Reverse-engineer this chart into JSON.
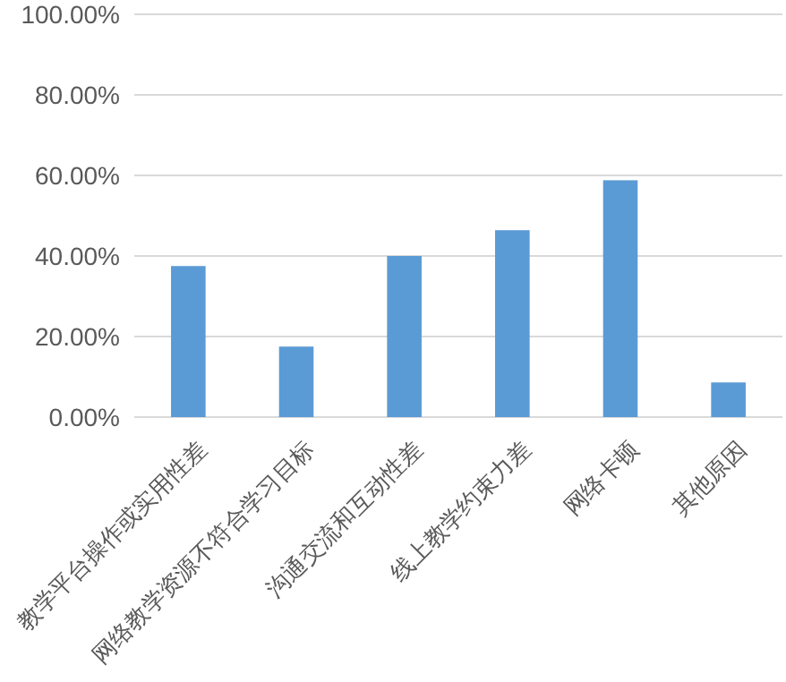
{
  "chart_data": {
    "type": "bar",
    "categories": [
      "教学平台操作或实用性差",
      "网络教学资源不符合学习目标",
      "沟通交流和互动性差",
      "线上教学约束力差",
      "网络卡顿",
      "其他原因"
    ],
    "values": [
      37.5,
      17.5,
      40,
      46.4,
      58.8,
      8.6
    ],
    "color": "#5b9bd5",
    "ylim": [
      0,
      100
    ],
    "yticks": [
      {
        "value": 0,
        "label": "0.00%"
      },
      {
        "value": 20,
        "label": "20.00%"
      },
      {
        "value": 40,
        "label": "40.00%"
      },
      {
        "value": 60,
        "label": "60.00%"
      },
      {
        "value": 80,
        "label": "80.00%"
      },
      {
        "value": 100,
        "label": "100.00%"
      }
    ],
    "grid": "y"
  }
}
